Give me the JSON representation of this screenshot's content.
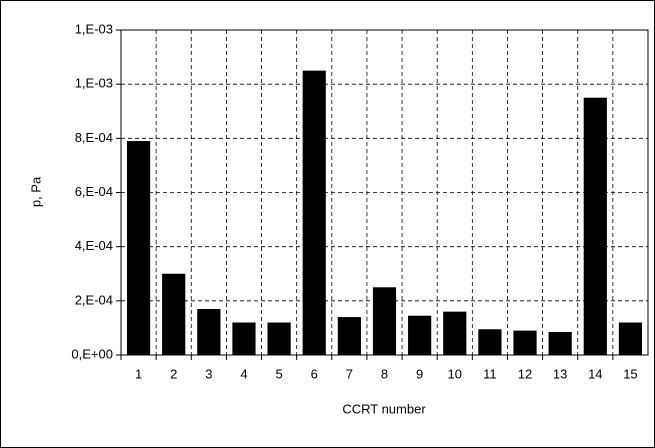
{
  "chart_data": {
    "type": "bar",
    "x_label": "CCRT number",
    "y_label": "p, Pa",
    "categories": [
      "1",
      "2",
      "3",
      "4",
      "5",
      "6",
      "7",
      "8",
      "9",
      "10",
      "11",
      "12",
      "13",
      "14",
      "15"
    ],
    "values": [
      0.00079,
      0.0003,
      0.00017,
      0.00012,
      0.00012,
      0.00105,
      0.00014,
      0.00025,
      0.000145,
      0.00016,
      9.5e-05,
      9e-05,
      8.5e-05,
      0.00095,
      0.00012
    ],
    "color": "#000000",
    "ylim": [
      0,
      0.0012
    ],
    "yticks": [
      {
        "value": 0,
        "label": "0,E+00"
      },
      {
        "value": 0.0002,
        "label": "2,E-04"
      },
      {
        "value": 0.0004,
        "label": "4,E-04"
      },
      {
        "value": 0.0006,
        "label": "6,E-04"
      },
      {
        "value": 0.0008,
        "label": "8,E-04"
      },
      {
        "value": 0.001,
        "label": "1,E-03"
      },
      {
        "value": 0.0012,
        "label": "1,E-03"
      }
    ],
    "grid": true
  }
}
